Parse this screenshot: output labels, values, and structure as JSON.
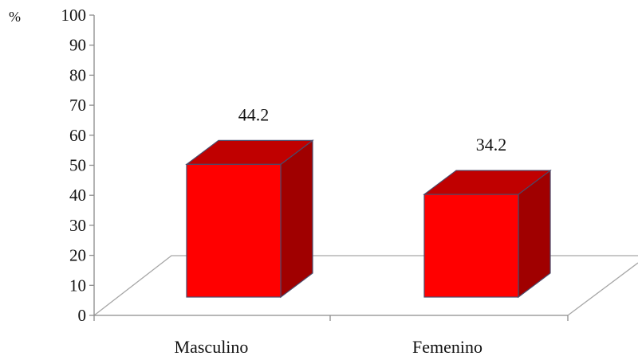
{
  "chart_data": {
    "type": "bar",
    "style": "3d-column",
    "categories": [
      "Masculino",
      "Femenino"
    ],
    "values": [
      44.2,
      34.2
    ],
    "value_labels": [
      "44.2",
      "34.2"
    ],
    "title": "",
    "xlabel": "",
    "ylabel": "%",
    "ylim": [
      0,
      100
    ],
    "ytick_step": 10,
    "grid": false,
    "legend": "none",
    "colors": {
      "bar_front": "#ff0000",
      "bar_top": "#c00000",
      "bar_side": "#a00000",
      "bar_edge": "#4a4a6a",
      "floor_line": "#a6a6a6",
      "axis_line": "#8c8c8c"
    }
  }
}
